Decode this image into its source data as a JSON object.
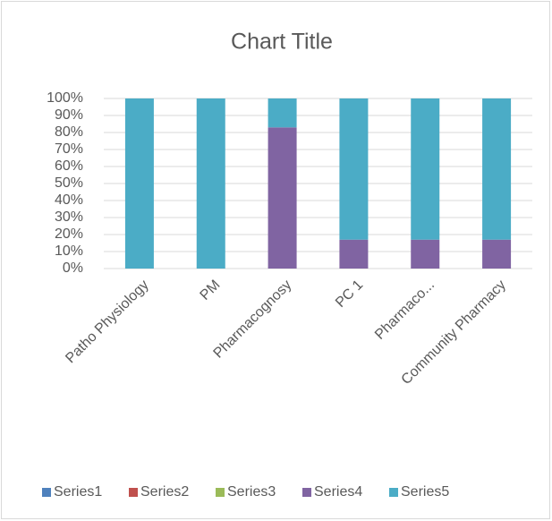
{
  "chart_data": {
    "type": "stacked_bar",
    "title": "Chart Title",
    "categories": [
      "Patho Physiology",
      "PM",
      "Pharmacognosy",
      "PC 1",
      "Pharmaco...",
      "Community Pharmacy"
    ],
    "series": [
      {
        "name": "Series1",
        "color": "#4f81bd",
        "values": [
          0,
          0,
          0,
          0,
          0,
          0
        ]
      },
      {
        "name": "Series2",
        "color": "#c0504d",
        "values": [
          0,
          0,
          0,
          0,
          0,
          0
        ]
      },
      {
        "name": "Series3",
        "color": "#9bbb59",
        "values": [
          0,
          0,
          0,
          0,
          0,
          0
        ]
      },
      {
        "name": "Series4",
        "color": "#8064a2",
        "values": [
          0,
          0,
          83,
          17,
          17,
          17
        ]
      },
      {
        "name": "Series5",
        "color": "#4bacc6",
        "values": [
          100,
          100,
          17,
          83,
          83,
          83
        ]
      }
    ],
    "ylim": [
      0,
      100
    ],
    "yticks": [
      {
        "value": 0,
        "label": "0%"
      },
      {
        "value": 10,
        "label": "10%"
      },
      {
        "value": 20,
        "label": "20%"
      },
      {
        "value": 30,
        "label": "30%"
      },
      {
        "value": 40,
        "label": "40%"
      },
      {
        "value": 50,
        "label": "50%"
      },
      {
        "value": 60,
        "label": "60%"
      },
      {
        "value": 70,
        "label": "70%"
      },
      {
        "value": 80,
        "label": "80%"
      },
      {
        "value": 90,
        "label": "90%"
      },
      {
        "value": 100,
        "label": "100%"
      }
    ],
    "grid": true,
    "legend": "bottom"
  }
}
